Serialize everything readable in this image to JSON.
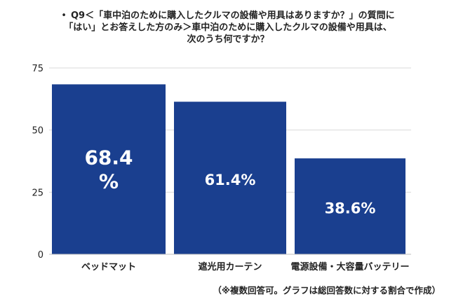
{
  "title": {
    "bullet": "•",
    "line1": "Q9＜「車中泊のために購入したクルマの設備や用具はありますか？」の質問に",
    "line2": "「はい」とお答えした方のみ＞車中泊のために購入したクルマの設備や用具は、",
    "line3": "次のうち何ですか？"
  },
  "note": "（※複数回答可。グラフは総回答数に対する割合で作成）",
  "chart_data": {
    "type": "bar",
    "categories": [
      "ベッドマット",
      "遮光用カーテン",
      "電源設備・大容量バッテリー"
    ],
    "values": [
      68.4,
      61.4,
      38.6
    ],
    "value_labels": [
      "68.4\n%",
      "61.4%",
      "38.6%"
    ],
    "yticks": [
      0,
      25,
      50,
      75
    ],
    "ylim": [
      0,
      75
    ],
    "grid": true,
    "bar_color": "#1a3f8f",
    "label_color": "#ffffff"
  }
}
